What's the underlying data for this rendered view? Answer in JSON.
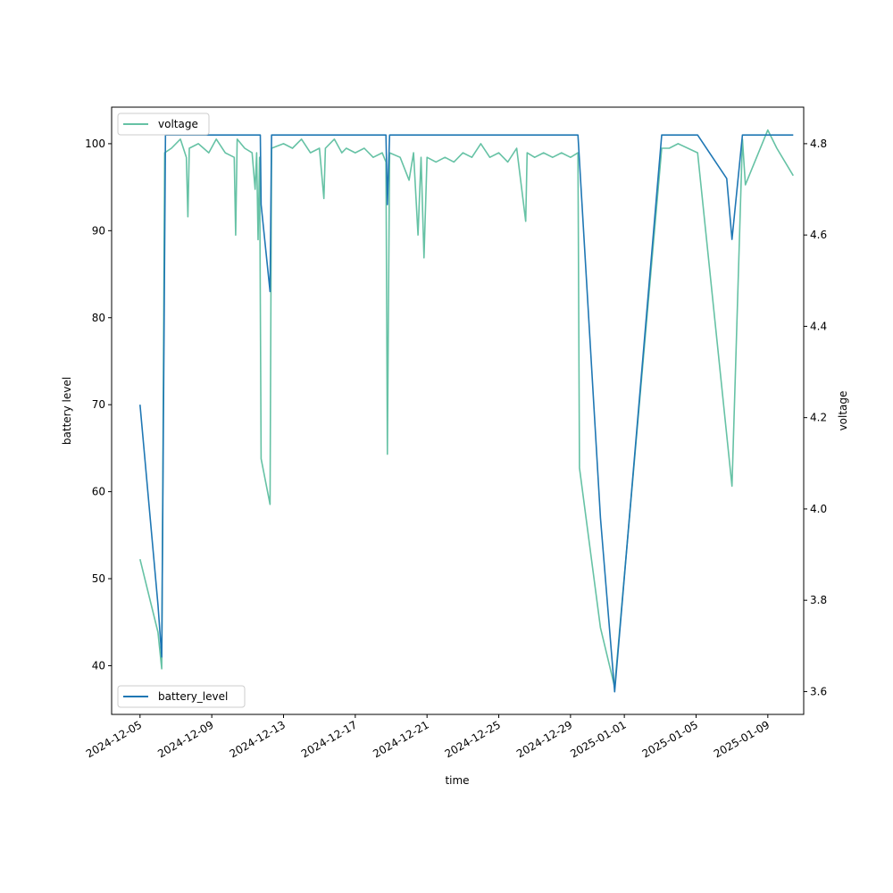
{
  "chart_data": {
    "type": "line",
    "xlabel": "time",
    "ylabel_left": "battery level",
    "ylabel_right": "voltage",
    "x_ticks": [
      "2024-12-05",
      "2024-12-09",
      "2024-12-13",
      "2024-12-17",
      "2024-12-21",
      "2024-12-25",
      "2024-12-29",
      "2025-01-01",
      "2025-01-05",
      "2025-01-09"
    ],
    "xlim": [
      "2024-12-03T10:00",
      "2025-01-11T00:00"
    ],
    "ylim_left": [
      34.4,
      104.2
    ],
    "ylim_right": [
      3.55,
      4.88
    ],
    "y_ticks_left": [
      40,
      50,
      60,
      70,
      80,
      90,
      100
    ],
    "y_ticks_right": [
      3.6,
      3.8,
      4.0,
      4.2,
      4.4,
      4.6,
      4.8
    ],
    "grid": false,
    "legend_left": {
      "placement": "lower-left",
      "label": "battery_level"
    },
    "legend_right": {
      "placement": "upper-left",
      "label": "voltage"
    },
    "series": [
      {
        "name": "battery_level",
        "axis": "left",
        "color": "#1f77b4",
        "points": [
          [
            "2024-12-05T00:00",
            70
          ],
          [
            "2024-12-06T00:00",
            47
          ],
          [
            "2024-12-06T05:00",
            41
          ],
          [
            "2024-12-06T10:00",
            101
          ],
          [
            "2024-12-11T17:00",
            101
          ],
          [
            "2024-12-11T18:00",
            93
          ],
          [
            "2024-12-12T06:00",
            83
          ],
          [
            "2024-12-12T08:00",
            101
          ],
          [
            "2024-12-18T17:00",
            101
          ],
          [
            "2024-12-18T19:00",
            93
          ],
          [
            "2024-12-18T22:00",
            101
          ],
          [
            "2024-12-29T10:00",
            101
          ],
          [
            "2024-12-30T16:00",
            57
          ],
          [
            "2024-12-31T11:00",
            37
          ],
          [
            "2025-01-03T02:00",
            101
          ],
          [
            "2025-01-05T02:00",
            101
          ],
          [
            "2025-01-06T17:00",
            96
          ],
          [
            "2025-01-07T00:00",
            89
          ],
          [
            "2025-01-07T14:00",
            101
          ],
          [
            "2025-01-10T10:00",
            101
          ]
        ]
      },
      {
        "name": "voltage",
        "axis": "right",
        "color": "#66c2a5",
        "points": [
          [
            "2024-12-05T00:00",
            3.89
          ],
          [
            "2024-12-06T00:00",
            3.73
          ],
          [
            "2024-12-06T05:00",
            3.65
          ],
          [
            "2024-12-06T09:00",
            4.78
          ],
          [
            "2024-12-06T18:00",
            4.79
          ],
          [
            "2024-12-07T06:00",
            4.81
          ],
          [
            "2024-12-07T14:00",
            4.77
          ],
          [
            "2024-12-07T16:00",
            4.64
          ],
          [
            "2024-12-07T18:00",
            4.79
          ],
          [
            "2024-12-08T06:00",
            4.8
          ],
          [
            "2024-12-08T20:00",
            4.78
          ],
          [
            "2024-12-09T06:00",
            4.81
          ],
          [
            "2024-12-09T18:00",
            4.78
          ],
          [
            "2024-12-10T06:00",
            4.77
          ],
          [
            "2024-12-10T08:00",
            4.6
          ],
          [
            "2024-12-10T10:00",
            4.81
          ],
          [
            "2024-12-10T20:00",
            4.79
          ],
          [
            "2024-12-11T06:00",
            4.78
          ],
          [
            "2024-12-11T10:00",
            4.7
          ],
          [
            "2024-12-11T12:00",
            4.78
          ],
          [
            "2024-12-11T14:00",
            4.59
          ],
          [
            "2024-12-11T16:00",
            4.77
          ],
          [
            "2024-12-11T18:00",
            4.11
          ],
          [
            "2024-12-12T06:00",
            4.01
          ],
          [
            "2024-12-12T08:00",
            4.79
          ],
          [
            "2024-12-13T00:00",
            4.8
          ],
          [
            "2024-12-13T12:00",
            4.79
          ],
          [
            "2024-12-14T00:00",
            4.81
          ],
          [
            "2024-12-14T12:00",
            4.78
          ],
          [
            "2024-12-15T00:00",
            4.79
          ],
          [
            "2024-12-15T06:00",
            4.68
          ],
          [
            "2024-12-15T08:00",
            4.79
          ],
          [
            "2024-12-15T20:00",
            4.81
          ],
          [
            "2024-12-16T06:00",
            4.78
          ],
          [
            "2024-12-16T12:00",
            4.79
          ],
          [
            "2024-12-17T00:00",
            4.78
          ],
          [
            "2024-12-17T12:00",
            4.79
          ],
          [
            "2024-12-18T00:00",
            4.77
          ],
          [
            "2024-12-18T12:00",
            4.78
          ],
          [
            "2024-12-18T17:00",
            4.76
          ],
          [
            "2024-12-18T19:00",
            4.12
          ],
          [
            "2024-12-18T22:00",
            4.78
          ],
          [
            "2024-12-19T12:00",
            4.77
          ],
          [
            "2024-12-20T00:00",
            4.72
          ],
          [
            "2024-12-20T06:00",
            4.78
          ],
          [
            "2024-12-20T12:00",
            4.6
          ],
          [
            "2024-12-20T16:00",
            4.77
          ],
          [
            "2024-12-20T20:00",
            4.55
          ],
          [
            "2024-12-21T00:00",
            4.77
          ],
          [
            "2024-12-21T12:00",
            4.76
          ],
          [
            "2024-12-22T00:00",
            4.77
          ],
          [
            "2024-12-22T12:00",
            4.76
          ],
          [
            "2024-12-23T00:00",
            4.78
          ],
          [
            "2024-12-23T12:00",
            4.77
          ],
          [
            "2024-12-24T00:00",
            4.8
          ],
          [
            "2024-12-24T12:00",
            4.77
          ],
          [
            "2024-12-25T00:00",
            4.78
          ],
          [
            "2024-12-25T12:00",
            4.76
          ],
          [
            "2024-12-26T00:00",
            4.79
          ],
          [
            "2024-12-26T12:00",
            4.63
          ],
          [
            "2024-12-26T14:00",
            4.78
          ],
          [
            "2024-12-27T00:00",
            4.77
          ],
          [
            "2024-12-27T12:00",
            4.78
          ],
          [
            "2024-12-28T00:00",
            4.77
          ],
          [
            "2024-12-28T12:00",
            4.78
          ],
          [
            "2024-12-29T00:00",
            4.77
          ],
          [
            "2024-12-29T10:00",
            4.78
          ],
          [
            "2024-12-29T12:00",
            4.09
          ],
          [
            "2024-12-30T16:00",
            3.74
          ],
          [
            "2024-12-31T11:00",
            3.61
          ],
          [
            "2025-01-03T02:00",
            4.79
          ],
          [
            "2025-01-03T12:00",
            4.79
          ],
          [
            "2025-01-04T00:00",
            4.8
          ],
          [
            "2025-01-05T02:00",
            4.78
          ],
          [
            "2025-01-07T00:00",
            4.05
          ],
          [
            "2025-01-07T14:00",
            4.81
          ],
          [
            "2025-01-07T18:00",
            4.71
          ],
          [
            "2025-01-09T00:00",
            4.83
          ],
          [
            "2025-01-09T12:00",
            4.79
          ],
          [
            "2025-01-10T10:00",
            4.73
          ]
        ]
      }
    ]
  }
}
